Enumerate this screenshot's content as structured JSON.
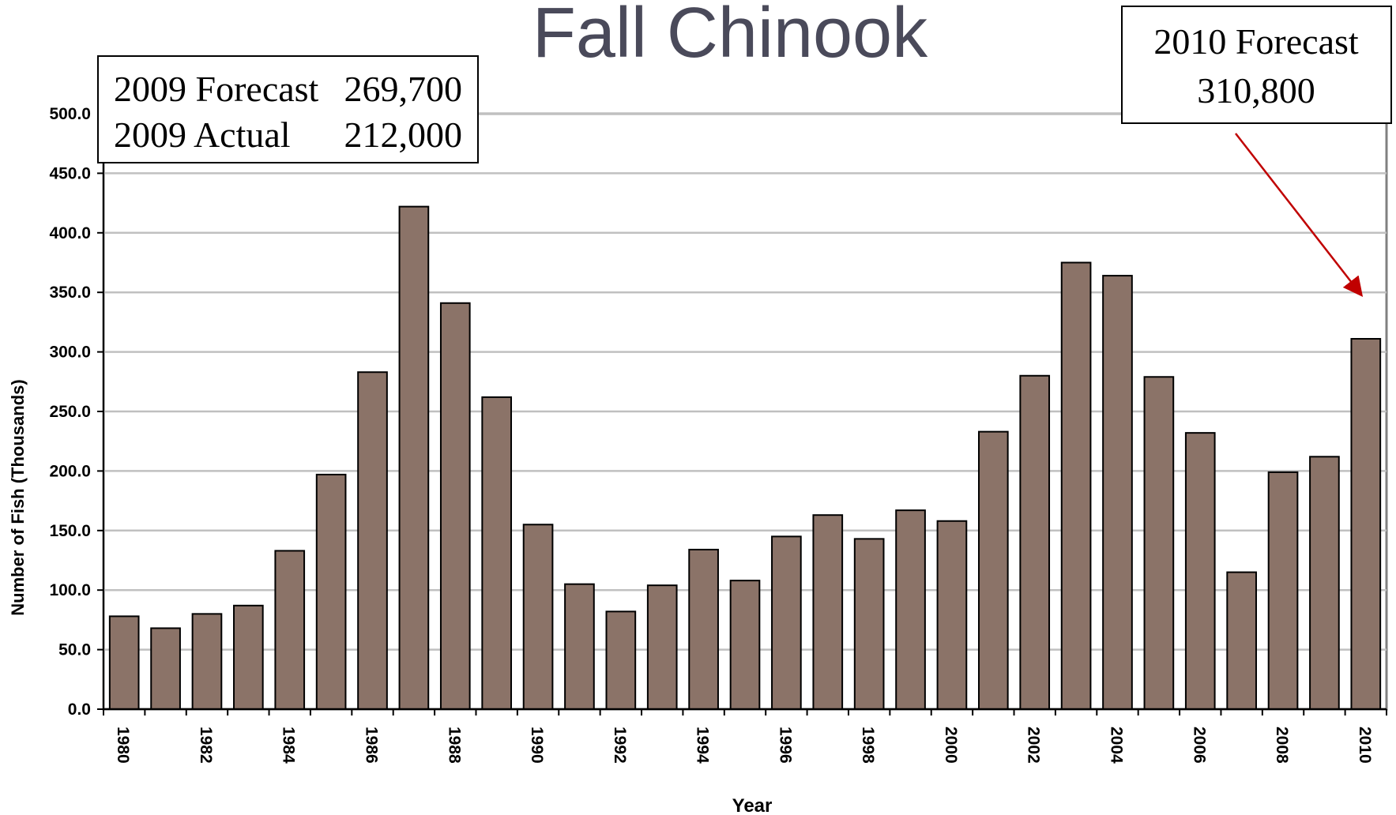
{
  "chart_data": {
    "type": "bar",
    "title": "Fall Chinook",
    "x_label": "Year",
    "y_label": "Number of Fish (Thousands)",
    "categories": [
      "1980",
      null,
      "1982",
      null,
      "1984",
      null,
      "1986",
      null,
      "1988",
      null,
      "1990",
      null,
      "1992",
      null,
      "1994",
      null,
      "1996",
      null,
      "1998",
      null,
      "2000",
      null,
      "2002",
      null,
      "2004",
      null,
      "2006",
      null,
      "2008",
      null,
      "2010"
    ],
    "values": [
      78,
      68,
      80,
      87,
      133,
      197,
      283,
      422,
      341,
      262,
      155,
      105,
      82,
      104,
      134,
      108,
      145,
      163,
      143,
      167,
      158,
      233,
      280,
      375,
      364,
      279,
      232,
      115,
      199,
      212,
      311
    ],
    "color": "#8b7368",
    "ylim": [
      0,
      500
    ],
    "yticks": [
      {
        "value": 0,
        "label": "0.0"
      },
      {
        "value": 50,
        "label": "50.0"
      },
      {
        "value": 100,
        "label": "100.0"
      },
      {
        "value": 150,
        "label": "150.0"
      },
      {
        "value": 200,
        "label": "200.0"
      },
      {
        "value": 250,
        "label": "250.0"
      },
      {
        "value": 300,
        "label": "300.0"
      },
      {
        "value": 350,
        "label": "350.0"
      },
      {
        "value": 400,
        "label": "400.0"
      },
      {
        "value": 450,
        "label": "450.0"
      },
      {
        "value": 500,
        "label": "500.0"
      }
    ],
    "grid": true,
    "annotations": [
      {
        "lines": [
          [
            "2009 Forecast",
            "269,700"
          ],
          [
            "2009 Actual",
            "212,000"
          ]
        ]
      },
      {
        "lines": [
          [
            "2010 Forecast"
          ],
          [
            "310,800"
          ]
        ]
      }
    ]
  }
}
